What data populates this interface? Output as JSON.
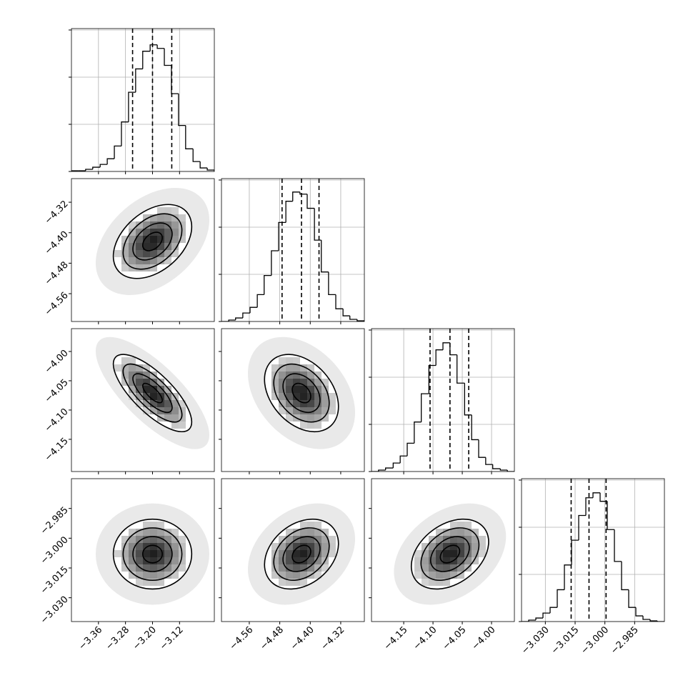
{
  "chart_data": {
    "type": "corner",
    "hist_ylim": [
      0,
      3030
    ],
    "hist_yticks": [
      0,
      1000,
      2000,
      3000
    ],
    "grid": true,
    "contour_levels": [
      0.5,
      1,
      1.5,
      2
    ],
    "parameters": [
      {
        "xlim": [
          -3.44,
          -3.017
        ],
        "xticks": [
          {
            "value": -3.36,
            "label": "−3.36"
          },
          {
            "value": -3.28,
            "label": "−3.28"
          },
          {
            "value": -3.2,
            "label": "−3.20"
          },
          {
            "value": -3.12,
            "label": "−3.12"
          }
        ],
        "bins": [
          -3.44,
          -3.419,
          -3.398,
          -3.377,
          -3.355,
          -3.334,
          -3.313,
          -3.292,
          -3.271,
          -3.25,
          -3.229,
          -3.207,
          -3.186,
          -3.165,
          -3.144,
          -3.123,
          -3.102,
          -3.08,
          -3.059,
          -3.038,
          -3.017
        ],
        "counts": [
          15,
          15,
          45,
          90,
          150,
          270,
          540,
          1050,
          1680,
          2175,
          2550,
          2685,
          2610,
          2250,
          1650,
          975,
          480,
          210,
          75,
          30
        ],
        "quantiles": [
          -3.259,
          -3.2,
          -3.143
        ]
      },
      {
        "xlim": [
          -4.633,
          -4.258
        ],
        "xticks": [
          {
            "value": -4.56,
            "label": "−4.56"
          },
          {
            "value": -4.48,
            "label": "−4.48"
          },
          {
            "value": -4.4,
            "label": "−4.40"
          },
          {
            "value": -4.32,
            "label": "−4.32"
          }
        ],
        "bins": [
          -4.633,
          -4.614,
          -4.596,
          -4.577,
          -4.558,
          -4.539,
          -4.521,
          -4.502,
          -4.483,
          -4.464,
          -4.446,
          -4.427,
          -4.408,
          -4.389,
          -4.371,
          -4.352,
          -4.333,
          -4.314,
          -4.296,
          -4.277,
          -4.258
        ],
        "counts": [
          0,
          30,
          75,
          180,
          300,
          570,
          975,
          1500,
          2100,
          2550,
          2745,
          2700,
          2400,
          1725,
          1050,
          570,
          270,
          120,
          45,
          15
        ],
        "quantiles": [
          -4.474,
          -4.423,
          -4.377
        ]
      },
      {
        "xlim": [
          -4.205,
          -3.961
        ],
        "xticks": [
          {
            "value": -4.15,
            "label": "−4.15"
          },
          {
            "value": -4.1,
            "label": "−4.10"
          },
          {
            "value": -4.05,
            "label": "−4.05"
          },
          {
            "value": -4.0,
            "label": "−4.00"
          }
        ],
        "bins": [
          -4.205,
          -4.193,
          -4.181,
          -4.168,
          -4.156,
          -4.144,
          -4.132,
          -4.12,
          -4.107,
          -4.095,
          -4.083,
          -4.071,
          -4.059,
          -4.046,
          -4.034,
          -4.022,
          -4.01,
          -3.998,
          -3.985,
          -3.973,
          -3.961
        ],
        "counts": [
          0,
          30,
          75,
          180,
          330,
          600,
          1050,
          1650,
          2250,
          2580,
          2730,
          2475,
          1875,
          1200,
          675,
          300,
          150,
          60,
          30,
          0
        ],
        "quantiles": [
          -4.105,
          -4.071,
          -4.039
        ]
      },
      {
        "xlim": [
          -3.042,
          -2.97
        ],
        "xticks": [
          {
            "value": -3.03,
            "label": "−3.030"
          },
          {
            "value": -3.015,
            "label": "−3.015"
          },
          {
            "value": -3.0,
            "label": "−3.000"
          },
          {
            "value": -2.985,
            "label": "−2.985"
          }
        ],
        "bins": [
          -3.042,
          -3.0384,
          -3.0348,
          -3.0312,
          -3.0276,
          -3.024,
          -3.0204,
          -3.0168,
          -3.0132,
          -3.0096,
          -3.006,
          -3.0024,
          -2.9988,
          -2.9952,
          -2.9916,
          -2.988,
          -2.9844,
          -2.9808,
          -2.9772,
          -2.9736,
          -2.97
        ],
        "counts": [
          0,
          30,
          75,
          180,
          300,
          675,
          1200,
          1725,
          2250,
          2625,
          2730,
          2550,
          1950,
          1275,
          675,
          300,
          120,
          45,
          15,
          0
        ],
        "quantiles": [
          -3.017,
          -3.008,
          -2.9994
        ]
      }
    ],
    "pairs": [
      [
        0.4
      ],
      [
        -0.75,
        -0.35
      ],
      [
        0.0,
        0.3,
        0.35
      ]
    ]
  }
}
